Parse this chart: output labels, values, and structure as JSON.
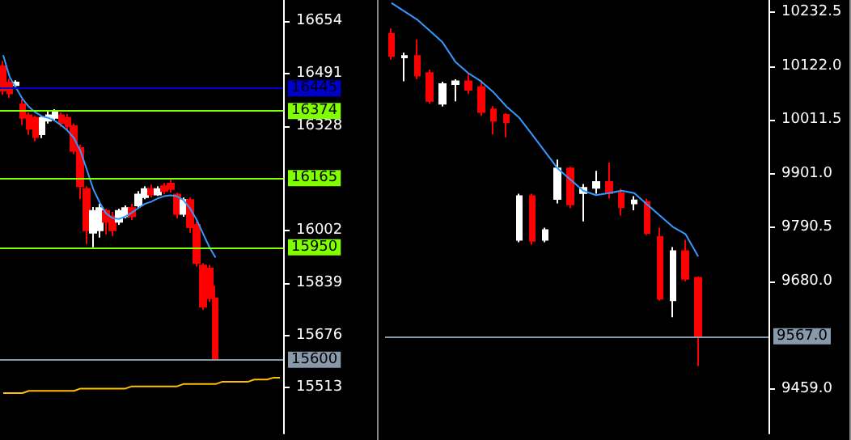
{
  "chart_data": [
    {
      "type": "candlestick",
      "categories": [
        null,
        null,
        null,
        null,
        null,
        null,
        null,
        null,
        null,
        null,
        null,
        null,
        null,
        null,
        null,
        null,
        null,
        null,
        null,
        null,
        null,
        null,
        null,
        null,
        null,
        null,
        null,
        null,
        null,
        null,
        null,
        null,
        null,
        null,
        null,
        null,
        null,
        null,
        null,
        null,
        null,
        null,
        null,
        null
      ],
      "ohlc": [
        [
          16514,
          16530,
          16425,
          16438
        ],
        [
          16463,
          16475,
          16415,
          16429
        ],
        [
          16455,
          16470,
          16445,
          16463
        ],
        [
          16395,
          16410,
          16330,
          16353
        ],
        [
          16361,
          16370,
          16300,
          16319
        ],
        [
          16353,
          16360,
          16280,
          16293
        ],
        [
          16302,
          16360,
          16290,
          16353
        ],
        [
          16344,
          16375,
          16335,
          16361
        ],
        [
          16353,
          16380,
          16345,
          16370
        ],
        [
          16361,
          16370,
          16325,
          16336
        ],
        [
          16353,
          16365,
          16315,
          16327
        ],
        [
          16327,
          16335,
          16240,
          16250
        ],
        [
          16259,
          16270,
          16100,
          16140
        ],
        [
          16131,
          16140,
          15960,
          16003
        ],
        [
          15995,
          16075,
          15950,
          16063
        ],
        [
          16003,
          16085,
          15980,
          16072
        ],
        [
          16063,
          16070,
          15990,
          16029
        ],
        [
          16046,
          16060,
          15985,
          16003
        ],
        [
          16029,
          16070,
          16020,
          16063
        ],
        [
          16046,
          16080,
          16040,
          16072
        ],
        [
          16072,
          16085,
          16035,
          16046
        ],
        [
          16080,
          16125,
          16070,
          16114
        ],
        [
          16106,
          16140,
          16100,
          16131
        ],
        [
          16131,
          16145,
          16105,
          16114
        ],
        [
          16114,
          16140,
          16110,
          16131
        ],
        [
          16140,
          16150,
          16115,
          16125
        ],
        [
          16148,
          16160,
          16120,
          16131
        ],
        [
          16114,
          16120,
          16040,
          16054
        ],
        [
          16054,
          16105,
          16045,
          16097
        ],
        [
          16097,
          16105,
          15995,
          16012
        ],
        [
          16020,
          16030,
          15890,
          15901
        ],
        [
          15893,
          15900,
          15755,
          15765
        ],
        [
          15884,
          15895,
          15780,
          15791
        ],
        [
          15791,
          15830,
          15600,
          15600
        ],
        null,
        null,
        null,
        null,
        null,
        null,
        null,
        null,
        null,
        null
      ],
      "colors": [
        "#ff0000",
        "#ff0000",
        "#ffffff",
        "#ff0000",
        "#ff0000",
        "#ff0000",
        "#ffffff",
        "#ffffff",
        "#ffffff",
        "#ff0000",
        "#ff0000",
        "#ff0000",
        "#ff0000",
        "#ff0000",
        "#ffffff",
        "#ffffff",
        "#ff0000",
        "#ff0000",
        "#ffffff",
        "#ffffff",
        "#ff0000",
        "#ffffff",
        "#ffffff",
        "#ff0000",
        "#ffffff",
        "#ff0000",
        "#ff0000",
        "#ff0000",
        "#ffffff",
        "#ff0000",
        "#ff0000",
        "#ff0000",
        "#ff0000",
        "#ff0000",
        null,
        null,
        null,
        null,
        null,
        null,
        null,
        null,
        null,
        null
      ],
      "series": [
        {
          "type": "line",
          "color": "#3399ff",
          "values": [
            16548,
            16480,
            16446,
            16412,
            16387,
            16370,
            16358,
            16353,
            16344,
            16330,
            16313,
            16290,
            16250,
            16191,
            16131,
            16089,
            16055,
            16041,
            16038,
            16046,
            16058,
            16072,
            16085,
            16092,
            16102,
            16109,
            16112,
            16109,
            16097,
            16072,
            16038,
            15995,
            15952,
            15918,
            null,
            null,
            null,
            null,
            null,
            null,
            null,
            null,
            null,
            null
          ]
        },
        {
          "type": "line",
          "color": "#ffc000",
          "values": [
            15496,
            15496,
            15496,
            15496,
            15503,
            15503,
            15503,
            15503,
            15503,
            15503,
            15503,
            15503,
            15510,
            15510,
            15510,
            15510,
            15510,
            15510,
            15510,
            15510,
            15517,
            15517,
            15517,
            15517,
            15517,
            15517,
            15517,
            15517,
            15524,
            15524,
            15524,
            15524,
            15524,
            15524,
            15531,
            15531,
            15531,
            15531,
            15531,
            15538,
            15538,
            15538,
            15544,
            15544
          ]
        }
      ],
      "ylim": [
        15370,
        16720
      ],
      "yticks": [
        16654,
        16491,
        16328,
        16002,
        15839,
        15676,
        15513
      ],
      "ref_lines": [
        {
          "axis": "y",
          "value": 16445,
          "label": "16445",
          "color": "#0000cc"
        },
        {
          "axis": "y",
          "value": 16374,
          "label": "16374",
          "color": "#80ff00"
        },
        {
          "axis": "y",
          "value": 16165,
          "label": "16165",
          "color": "#80ff00"
        },
        {
          "axis": "y",
          "value": 15950,
          "label": "15950",
          "color": "#80ff00"
        },
        {
          "axis": "y",
          "value": 15600,
          "label": "15600",
          "color": "#8899aa"
        }
      ],
      "grid": false
    },
    {
      "type": "candlestick",
      "categories": [
        null,
        null,
        null,
        null,
        null,
        null,
        null,
        null,
        null,
        null,
        null,
        null,
        null,
        null,
        null,
        null,
        null,
        null,
        null,
        null,
        null,
        null,
        null,
        null,
        null,
        null,
        null,
        null,
        null,
        null
      ],
      "ohlc": [
        [
          10188.7,
          10200,
          10135,
          10142.7
        ],
        [
          10140,
          10150,
          10091,
          10143
        ],
        [
          10142.7,
          10177,
          10095,
          10102.4
        ],
        [
          10108,
          10115,
          10045,
          10050.6
        ],
        [
          10044.9,
          10090,
          10039,
          10085
        ],
        [
          10085,
          10095,
          10050,
          10090.9
        ],
        [
          10091,
          10108,
          10065,
          10073.6
        ],
        [
          10079,
          10093,
          10020,
          10027.6
        ],
        [
          10033,
          10040,
          9981.6,
          10010
        ],
        [
          10021.8,
          10025,
          9975.8,
          10006.9
        ],
        [
          9765,
          9860,
          9760,
          9855
        ],
        [
          9855,
          9860,
          9755,
          9763
        ],
        [
          9765,
          9790,
          9760,
          9785
        ],
        [
          9849,
          9930,
          9840,
          9912
        ],
        [
          9912,
          9915,
          9830,
          9838
        ],
        [
          9861,
          9880,
          9803,
          9872
        ],
        [
          9872,
          9907,
          9860,
          9884
        ],
        [
          9884,
          9924,
          9850,
          9861
        ],
        [
          9861,
          9870,
          9815,
          9832
        ],
        [
          9840,
          9855,
          9826,
          9846
        ],
        [
          9843,
          9850,
          9775,
          9779
        ],
        [
          9771,
          9790,
          9640,
          9644
        ],
        [
          9641,
          9750,
          9606,
          9742
        ],
        [
          9742,
          9765,
          9680,
          9685
        ],
        [
          9687,
          9690,
          9506,
          9567
        ],
        null,
        null,
        null,
        null,
        null
      ],
      "colors": [
        "#ff0000",
        "#ffffff",
        "#ff0000",
        "#ff0000",
        "#ffffff",
        "#ffffff",
        "#ff0000",
        "#ff0000",
        "#ff0000",
        "#ff0000",
        "#ffffff",
        "#ff0000",
        "#ffffff",
        "#ffffff",
        "#ff0000",
        "#ffffff",
        "#ffffff",
        "#ff0000",
        "#ff0000",
        "#ffffff",
        "#ff0000",
        "#ff0000",
        "#ffffff",
        "#ff0000",
        "#ff0000",
        null,
        null,
        null,
        null,
        null
      ],
      "series": [
        {
          "type": "line",
          "color": "#3399ff",
          "values": [
            10252,
            10235,
            10218,
            10195,
            10171,
            10131,
            10108,
            10091,
            10068,
            10039,
            10016,
            9982,
            9947,
            9912,
            9889,
            9866,
            9857,
            9861,
            9866,
            9861,
            9838,
            9815,
            9792,
            9777,
            9731,
            null,
            null,
            null,
            null,
            null
          ]
        }
      ],
      "ylim": [
        9367,
        10258
      ],
      "yticks": [
        {
          "value": 10232.5,
          "label": "10232.5"
        },
        {
          "value": 10122,
          "label": "10122.0"
        },
        {
          "value": 10011.5,
          "label": "10011.5"
        },
        {
          "value": 9901,
          "label": "9901.0"
        },
        {
          "value": 9790.5,
          "label": "9790.5"
        },
        {
          "value": 9680,
          "label": "9680.0"
        },
        {
          "value": 9459,
          "label": "9459.0"
        }
      ],
      "ref_lines": [
        {
          "axis": "y",
          "value": 9567,
          "label": "9567.0",
          "color": "#8899aa"
        }
      ],
      "grid": false
    }
  ]
}
